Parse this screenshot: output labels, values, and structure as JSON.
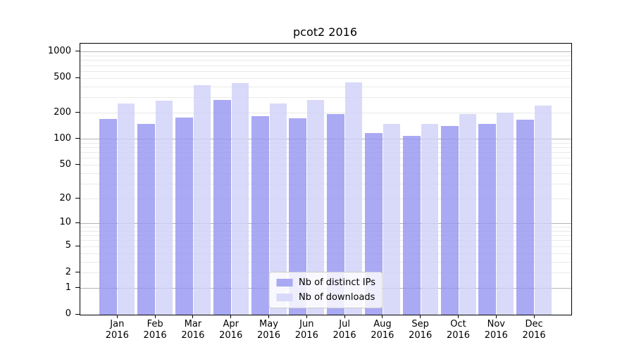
{
  "figure": {
    "title": "pcot2 2016"
  },
  "chart_data": {
    "type": "bar",
    "title": "pcot2 2016",
    "xlabel": "",
    "ylabel": "",
    "x": {
      "months": [
        "Jan",
        "Feb",
        "Mar",
        "Apr",
        "May",
        "Jun",
        "Jul",
        "Aug",
        "Sep",
        "Oct",
        "Nov",
        "Dec"
      ],
      "year": "2016"
    },
    "series": [
      {
        "name": "Nb of distinct IPs",
        "color": "#a9a9f4",
        "fill": "rgba(148,148,241,0.8)",
        "values": [
          170,
          149,
          178,
          281,
          183,
          173,
          195,
          118,
          109,
          143,
          151,
          169
        ]
      },
      {
        "name": "Nb of downloads",
        "color": "#d9d9f9",
        "fill": "rgba(208,208,248,0.8)",
        "values": [
          256,
          277,
          419,
          437,
          257,
          281,
          445,
          149,
          151,
          194,
          201,
          243
        ]
      }
    ],
    "yscale": "log1p",
    "ylim": [
      0,
      1245
    ],
    "y_ticks": [
      0,
      1,
      2,
      5,
      10,
      20,
      50,
      100,
      200,
      500,
      1000
    ],
    "major_gridlines": [
      1,
      10,
      100,
      1000
    ],
    "minor_gridlines": [
      2,
      3,
      4,
      5,
      6,
      7,
      8,
      9,
      20,
      30,
      40,
      50,
      60,
      70,
      80,
      90,
      200,
      300,
      400,
      500,
      600,
      700,
      800,
      900
    ],
    "grid": true,
    "legend": {
      "position": "lower center"
    },
    "colors": {
      "major_grid": "#b4b4b4",
      "minor_grid": "#e9e9e9",
      "axis": "#000000",
      "legend_border": "#cccccc"
    }
  }
}
